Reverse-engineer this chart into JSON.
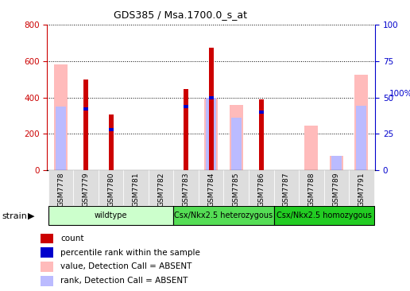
{
  "title": "GDS385 / Msa.1700.0_s_at",
  "samples": [
    "GSM7778",
    "GSM7779",
    "GSM7780",
    "GSM7781",
    "GSM7782",
    "GSM7783",
    "GSM7784",
    "GSM7785",
    "GSM7786",
    "GSM7787",
    "GSM7788",
    "GSM7789",
    "GSM7791"
  ],
  "count": [
    0,
    500,
    305,
    0,
    0,
    445,
    675,
    0,
    390,
    0,
    0,
    0,
    0
  ],
  "percentile_rank": [
    0,
    42,
    28,
    0,
    0,
    44,
    50,
    0,
    40,
    0,
    0,
    0,
    0
  ],
  "absent_value": [
    580,
    0,
    0,
    0,
    0,
    0,
    395,
    360,
    0,
    0,
    245,
    80,
    525
  ],
  "absent_rank": [
    350,
    0,
    0,
    0,
    0,
    0,
    400,
    290,
    0,
    0,
    0,
    80,
    355
  ],
  "ylim_left": [
    0,
    800
  ],
  "ylim_right": [
    0,
    100
  ],
  "yticks_left": [
    0,
    200,
    400,
    600,
    800
  ],
  "yticks_right": [
    0,
    25,
    50,
    75,
    100
  ],
  "groups": [
    {
      "label": "wildtype",
      "start": 0,
      "end": 5,
      "color": "#ccffcc"
    },
    {
      "label": "Csx/Nkx2.5 heterozygous",
      "start": 5,
      "end": 9,
      "color": "#55dd55"
    },
    {
      "label": "Csx/Nkx2.5 homozygous",
      "start": 9,
      "end": 13,
      "color": "#22cc22"
    }
  ],
  "color_count": "#cc0000",
  "color_rank": "#0000cc",
  "color_absent_value": "#ffbbbb",
  "color_absent_rank": "#bbbbff",
  "left_tick_color": "#cc0000",
  "right_tick_color": "#0000cc"
}
